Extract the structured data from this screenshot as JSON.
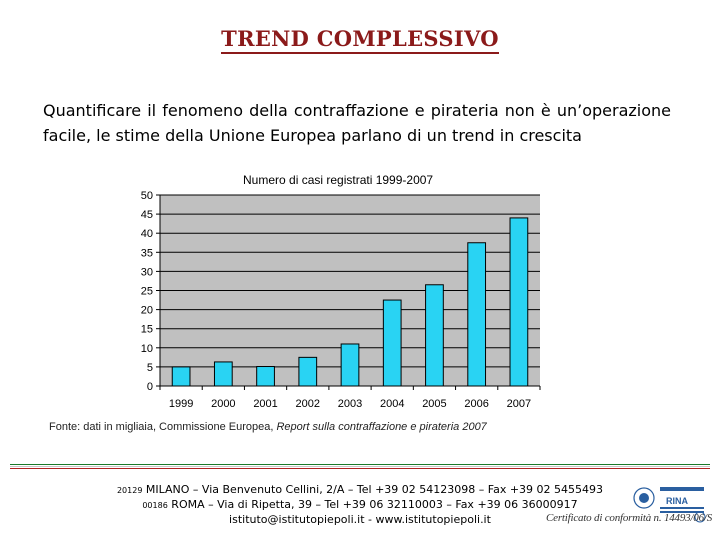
{
  "slide": {
    "title": "TREND COMPLESSIVO",
    "intro": "Quantificare il fenomeno della contraffazione e pirateria non è un’operazione facile, le stime della Unione Europea parlano di un trend in crescita",
    "source_prefix": "Fonte: dati in migliaia, Commissione Europea, ",
    "source_italic": "Report sulla contraffazione e pirateria 2007"
  },
  "chart_data": {
    "type": "bar",
    "title": "Numero di casi registrati 1999-2007",
    "categories": [
      "1999",
      "2000",
      "2001",
      "2002",
      "2003",
      "2004",
      "2005",
      "2006",
      "2007"
    ],
    "values": [
      5,
      6.3,
      5.1,
      7.5,
      11,
      22.5,
      26.5,
      37.5,
      44
    ],
    "ylim": [
      0,
      50
    ],
    "yticks": [
      0,
      5,
      10,
      15,
      20,
      25,
      30,
      35,
      40,
      45,
      50
    ],
    "xlabel": "",
    "ylabel": "",
    "grid": true,
    "colors": {
      "bar": "#29d3f3",
      "plot_bg": "#c0c0c0",
      "grid": "#000000"
    }
  },
  "footer": {
    "line1_zip": "20129",
    "line1": "MILANO – Via Benvenuto Cellini, 2/A – Tel +39 02 54123098 – Fax +39 02 5455493",
    "line2_zip": "00186",
    "line2": "ROMA – Via di Ripetta, 39 – Tel +39 06 32110003 – Fax +39 06 36000917",
    "line3": "istituto@istitutopiepoli.it - www.istitutopiepoli.it",
    "certificate": "Certificato di conformità n. 14493/06/S",
    "logo_text": "RINA"
  }
}
